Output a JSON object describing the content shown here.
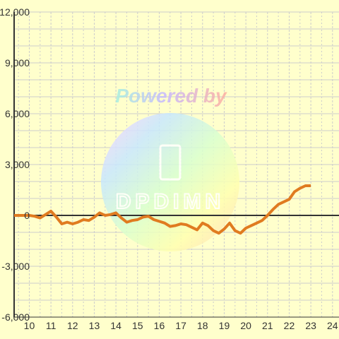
{
  "chart_data": {
    "type": "line",
    "title": "",
    "xlabel": "",
    "ylabel": "",
    "xlim": [
      9.3,
      24.3
    ],
    "ylim": [
      -6000,
      12000
    ],
    "x_ticks": [
      "10",
      "11",
      "12",
      "13",
      "14",
      "15",
      "16",
      "17",
      "18",
      "19",
      "20",
      "21",
      "22",
      "23",
      "24"
    ],
    "y_ticks": [
      "12,000",
      "9,000",
      "6,000",
      "3,000",
      "0",
      "-3,000",
      "-6,000"
    ],
    "y_tick_values": [
      12000,
      9000,
      6000,
      3000,
      0,
      -3000,
      -6000
    ],
    "grid": true,
    "colors": {
      "background": "#ffffcc",
      "grid": "#cccccc",
      "axis": "#333333",
      "line": "#e07b20"
    },
    "series": [
      {
        "x": [
          9.3,
          10.0,
          10.25,
          10.5,
          10.75,
          11.0,
          11.25,
          11.5,
          11.75,
          12.0,
          12.25,
          12.5,
          12.75,
          13.0,
          13.25,
          13.5,
          13.75,
          14.0,
          14.25,
          14.5,
          14.75,
          15.0,
          15.25,
          15.5,
          15.75,
          16.0,
          16.25,
          16.5,
          16.75,
          17.0,
          17.25,
          17.5,
          17.75,
          18.0,
          18.25,
          18.5,
          18.75,
          19.0,
          19.25,
          19.5,
          19.75,
          20.0,
          20.25,
          20.5,
          20.75,
          21.0,
          21.25,
          21.5,
          21.75,
          22.0,
          22.25,
          22.5,
          22.75,
          23.0
        ],
        "values": [
          0,
          0,
          -50,
          -150,
          50,
          250,
          -100,
          -500,
          -400,
          -500,
          -400,
          -250,
          -300,
          -100,
          150,
          0,
          50,
          150,
          -150,
          -400,
          -300,
          -250,
          -100,
          -50,
          -250,
          -350,
          -450,
          -650,
          -600,
          -500,
          -550,
          -700,
          -850,
          -450,
          -600,
          -900,
          -1050,
          -800,
          -450,
          -900,
          -1050,
          -750,
          -600,
          -450,
          -300,
          0,
          350,
          650,
          800,
          950,
          1400,
          1600,
          1750,
          1750
        ]
      }
    ]
  },
  "watermark": {
    "title": "Powered by",
    "label": "DPDIMN"
  }
}
